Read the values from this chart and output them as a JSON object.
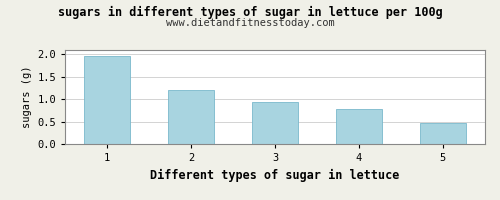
{
  "categories": [
    1,
    2,
    3,
    4,
    5
  ],
  "values": [
    1.97,
    1.2,
    0.93,
    0.79,
    0.48
  ],
  "bar_color": "#a8d4e0",
  "bar_edge_color": "#7ab8cc",
  "title": "sugars in different types of sugar in lettuce per 100g",
  "subtitle": "www.dietandfitnesstoday.com",
  "xlabel": "Different types of sugar in lettuce",
  "ylabel": "sugars (g)",
  "ylim": [
    0,
    2.1
  ],
  "yticks": [
    0.0,
    0.5,
    1.0,
    1.5,
    2.0
  ],
  "title_fontsize": 8.5,
  "subtitle_fontsize": 7.5,
  "xlabel_fontsize": 8.5,
  "ylabel_fontsize": 7.5,
  "tick_fontsize": 7.5,
  "background_color": "#f0f0e8",
  "plot_bg_color": "#ffffff",
  "grid_color": "#cccccc",
  "border_color": "#888888"
}
